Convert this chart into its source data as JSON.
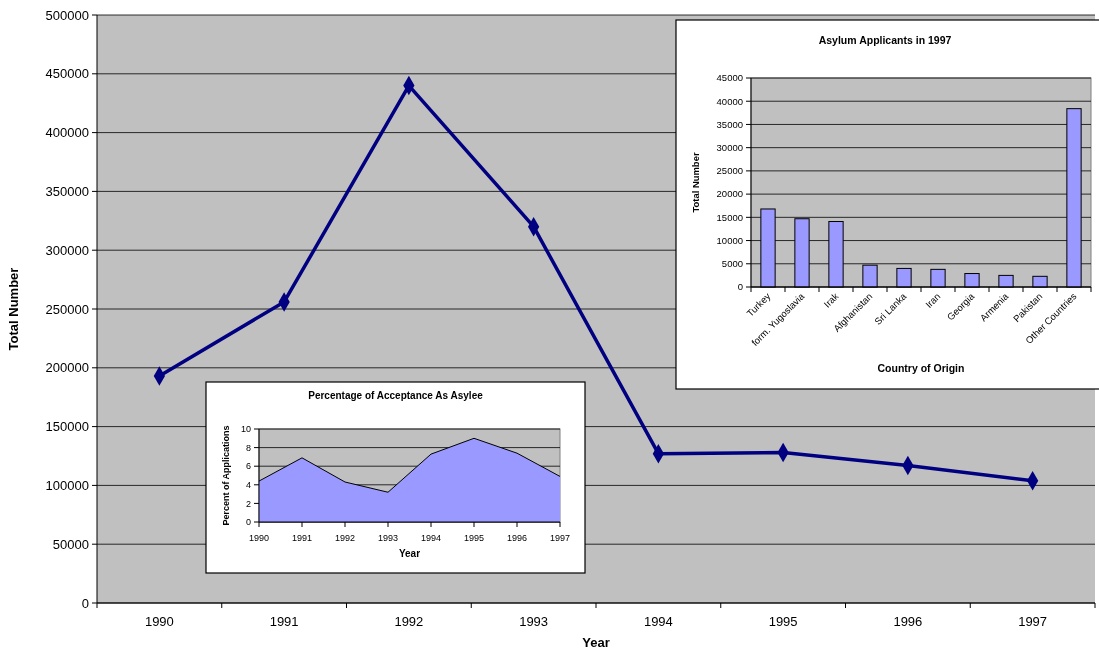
{
  "chart_data": [
    {
      "type": "line",
      "xlabel": "Year",
      "ylabel": "Total Number",
      "categories": [
        "1990",
        "1991",
        "1992",
        "1993",
        "1994",
        "1995",
        "1996",
        "1997"
      ],
      "series": [
        {
          "color": "#000080",
          "values": [
            193000,
            256000,
            440000,
            320000,
            127000,
            128000,
            117000,
            104000
          ]
        }
      ],
      "ylim": [
        0,
        500000
      ],
      "yticks": [
        0,
        50000,
        100000,
        150000,
        200000,
        250000,
        300000,
        350000,
        400000,
        450000,
        500000
      ],
      "grid": "y",
      "marker": "diamond"
    },
    {
      "type": "bar",
      "title": "Asylum Applicants in 1997",
      "xlabel": "Country of Origin",
      "ylabel": "Total Number",
      "categories": [
        "Turkey",
        "form. Yugoslavia",
        "Irak",
        "Afghanistan",
        "Sri Lanka",
        "Iran",
        "Georgia",
        "Armenia",
        "Pakistan",
        "Other Countries"
      ],
      "series": [
        {
          "color": "#9999ff",
          "values": [
            16800,
            14700,
            14100,
            4700,
            4000,
            3800,
            2900,
            2500,
            2300,
            38400
          ]
        }
      ],
      "ylim": [
        0,
        45000
      ],
      "yticks": [
        0,
        5000,
        10000,
        15000,
        20000,
        25000,
        30000,
        35000,
        40000,
        45000
      ],
      "grid": "y"
    },
    {
      "type": "area",
      "title": "Percentage of Acceptance As Asylee",
      "xlabel": "Year",
      "ylabel": "Percent of Applications",
      "categories": [
        "1990",
        "1991",
        "1992",
        "1993",
        "1994",
        "1995",
        "1996",
        "1997"
      ],
      "series": [
        {
          "color": "#9999ff",
          "values": [
            4.4,
            6.9,
            4.3,
            3.2,
            7.3,
            9.0,
            7.4,
            4.9
          ]
        }
      ],
      "ylim": [
        0,
        10
      ],
      "yticks": [
        0,
        2,
        4,
        6,
        8,
        10
      ],
      "grid": "y"
    }
  ]
}
